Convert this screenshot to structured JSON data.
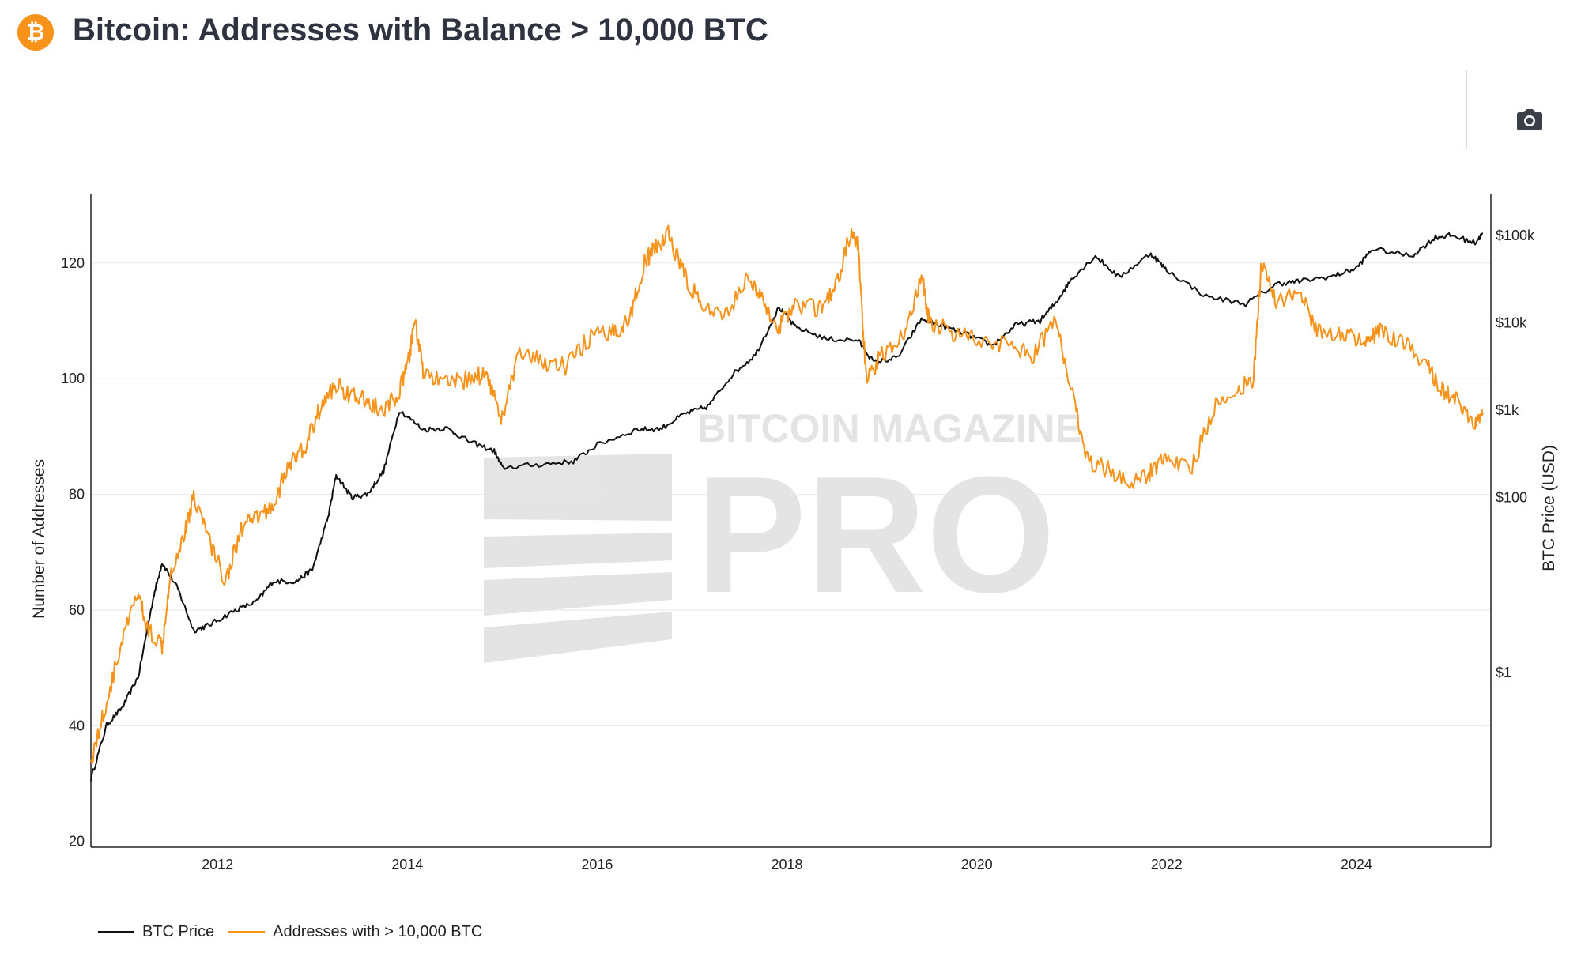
{
  "header": {
    "title": "Bitcoin: Addresses with Balance > 10,000 BTC",
    "logo_glyph": "₿"
  },
  "toolbar": {
    "camera_icon": "camera-icon"
  },
  "watermark": {
    "line1": "BITCOIN MAGAZINE",
    "line2": "PRO"
  },
  "colors": {
    "btc_price": "#111111",
    "addresses": "#f7931a",
    "grid": "#e6e6e6",
    "brand": "#f7931a"
  },
  "chart_data": {
    "type": "line",
    "x_axis": {
      "ticks": [
        "2012",
        "2014",
        "2016",
        "2018",
        "2020",
        "2022",
        "2024"
      ],
      "range": [
        "2010-09",
        "2025-06"
      ]
    },
    "y_left": {
      "label": "Number of Addresses",
      "ticks": [
        20,
        40,
        60,
        80,
        100,
        120
      ],
      "range": [
        19,
        132
      ]
    },
    "y_right": {
      "label": "BTC Price (USD)",
      "scale": "log",
      "ticks": [
        "$1",
        "$100",
        "$1k",
        "$10k",
        "$100k"
      ],
      "range": [
        0.01,
        300000
      ]
    },
    "grid": true,
    "legend_position": "bottom-left",
    "series": [
      {
        "name": "BTC Price",
        "axis": "right",
        "points": [
          [
            "2010-09",
            0.06
          ],
          [
            "2010-11",
            0.25
          ],
          [
            "2011-01",
            0.4
          ],
          [
            "2011-03",
            0.9
          ],
          [
            "2011-05",
            8
          ],
          [
            "2011-06",
            18
          ],
          [
            "2011-08",
            9
          ],
          [
            "2011-10",
            3
          ],
          [
            "2011-12",
            3.5
          ],
          [
            "2012-03",
            5
          ],
          [
            "2012-06",
            6.5
          ],
          [
            "2012-08",
            11
          ],
          [
            "2012-11",
            11
          ],
          [
            "2013-01",
            15
          ],
          [
            "2013-03",
            60
          ],
          [
            "2013-04",
            180
          ],
          [
            "2013-06",
            100
          ],
          [
            "2013-08",
            110
          ],
          [
            "2013-10",
            200
          ],
          [
            "2013-12",
            1000
          ],
          [
            "2014-03",
            600
          ],
          [
            "2014-06",
            620
          ],
          [
            "2014-09",
            430
          ],
          [
            "2014-12",
            340
          ],
          [
            "2015-01",
            220
          ],
          [
            "2015-06",
            240
          ],
          [
            "2015-10",
            260
          ],
          [
            "2016-01",
            400
          ],
          [
            "2016-06",
            600
          ],
          [
            "2016-09",
            610
          ],
          [
            "2016-12",
            900
          ],
          [
            "2017-03",
            1100
          ],
          [
            "2017-06",
            2500
          ],
          [
            "2017-09",
            4300
          ],
          [
            "2017-12",
            15000
          ],
          [
            "2018-02",
            9000
          ],
          [
            "2018-06",
            6500
          ],
          [
            "2018-10",
            6300
          ],
          [
            "2018-12",
            3500
          ],
          [
            "2019-03",
            4000
          ],
          [
            "2019-06",
            11000
          ],
          [
            "2019-09",
            9000
          ],
          [
            "2019-12",
            7200
          ],
          [
            "2020-03",
            5500
          ],
          [
            "2020-06",
            9500
          ],
          [
            "2020-09",
            10500
          ],
          [
            "2020-11",
            17000
          ],
          [
            "2021-01",
            32000
          ],
          [
            "2021-04",
            58000
          ],
          [
            "2021-07",
            33000
          ],
          [
            "2021-11",
            62000
          ],
          [
            "2022-01",
            40000
          ],
          [
            "2022-06",
            20000
          ],
          [
            "2022-11",
            16500
          ],
          [
            "2023-03",
            28000
          ],
          [
            "2023-06",
            30000
          ],
          [
            "2023-10",
            34000
          ],
          [
            "2024-01",
            42000
          ],
          [
            "2024-03",
            70000
          ],
          [
            "2024-08",
            58000
          ],
          [
            "2024-11",
            95000
          ],
          [
            "2025-01",
            100000
          ],
          [
            "2025-04",
            82000
          ],
          [
            "2025-05",
            105000
          ]
        ]
      },
      {
        "name": "Addresses with > 10,000 BTC",
        "axis": "left",
        "points": [
          [
            "2010-09",
            34
          ],
          [
            "2010-11",
            44
          ],
          [
            "2011-01",
            55
          ],
          [
            "2011-03",
            63
          ],
          [
            "2011-04",
            57
          ],
          [
            "2011-06",
            54
          ],
          [
            "2011-07",
            66
          ],
          [
            "2011-09",
            74
          ],
          [
            "2011-10",
            80
          ],
          [
            "2011-12",
            72
          ],
          [
            "2012-02",
            65
          ],
          [
            "2012-04",
            74
          ],
          [
            "2012-06",
            76
          ],
          [
            "2012-08",
            78
          ],
          [
            "2012-10",
            85
          ],
          [
            "2012-12",
            88
          ],
          [
            "2013-02",
            95
          ],
          [
            "2013-04",
            99
          ],
          [
            "2013-06",
            97
          ],
          [
            "2013-08",
            96
          ],
          [
            "2013-10",
            94
          ],
          [
            "2013-12",
            98
          ],
          [
            "2014-01",
            102
          ],
          [
            "2014-02",
            110
          ],
          [
            "2014-03",
            101
          ],
          [
            "2014-06",
            99
          ],
          [
            "2014-09",
            100
          ],
          [
            "2014-11",
            101
          ],
          [
            "2015-01",
            93
          ],
          [
            "2015-03",
            104
          ],
          [
            "2015-06",
            103
          ],
          [
            "2015-09",
            102
          ],
          [
            "2015-12",
            107
          ],
          [
            "2016-03",
            108
          ],
          [
            "2016-05",
            110
          ],
          [
            "2016-07",
            120
          ],
          [
            "2016-08",
            122
          ],
          [
            "2016-10",
            125
          ],
          [
            "2016-12",
            118
          ],
          [
            "2017-02",
            113
          ],
          [
            "2017-05",
            110
          ],
          [
            "2017-08",
            118
          ],
          [
            "2017-10",
            113
          ],
          [
            "2017-12",
            109
          ],
          [
            "2018-02",
            113
          ],
          [
            "2018-05",
            112
          ],
          [
            "2018-07",
            115
          ],
          [
            "2018-09",
            125
          ],
          [
            "2018-10",
            123
          ],
          [
            "2018-11",
            100
          ],
          [
            "2019-01",
            104
          ],
          [
            "2019-04",
            108
          ],
          [
            "2019-06",
            118
          ],
          [
            "2019-07",
            110
          ],
          [
            "2019-10",
            108
          ],
          [
            "2020-01",
            107
          ],
          [
            "2020-05",
            106
          ],
          [
            "2020-08",
            104
          ],
          [
            "2020-11",
            110
          ],
          [
            "2021-01",
            98
          ],
          [
            "2021-03",
            86
          ],
          [
            "2021-06",
            84
          ],
          [
            "2021-09",
            82
          ],
          [
            "2021-11",
            84
          ],
          [
            "2022-01",
            87
          ],
          [
            "2022-04",
            84
          ],
          [
            "2022-07",
            95
          ],
          [
            "2022-10",
            98
          ],
          [
            "2022-12",
            100
          ],
          [
            "2023-01",
            120
          ],
          [
            "2023-03",
            113
          ],
          [
            "2023-06",
            115
          ],
          [
            "2023-08",
            108
          ],
          [
            "2023-11",
            108
          ],
          [
            "2024-02",
            106
          ],
          [
            "2024-04",
            108
          ],
          [
            "2024-07",
            106
          ],
          [
            "2024-10",
            102
          ],
          [
            "2024-12",
            98
          ],
          [
            "2025-02",
            96
          ],
          [
            "2025-04",
            92
          ],
          [
            "2025-05",
            94
          ]
        ]
      }
    ]
  }
}
